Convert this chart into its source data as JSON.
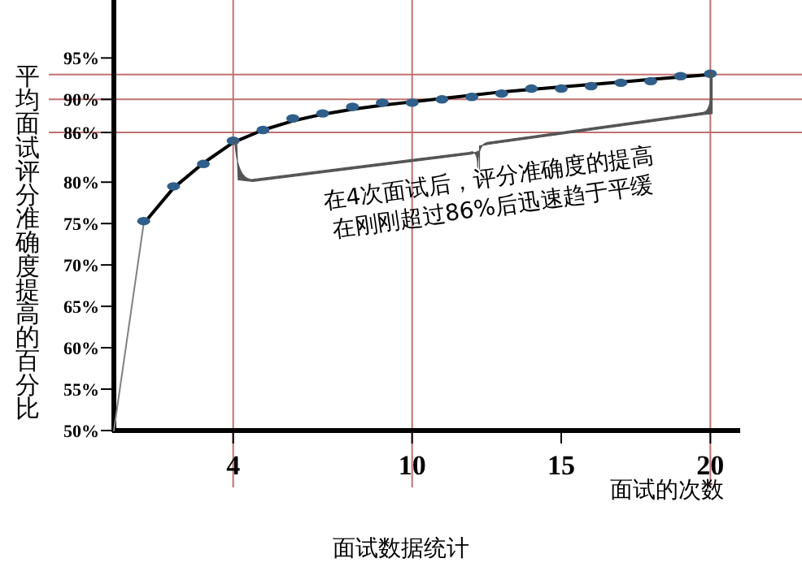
{
  "chart_data": {
    "type": "scatter",
    "title": "面试数据统计",
    "xlabel": "面试的次数",
    "ylabel": "平均面试评分准确度提高的百分比",
    "xlim": [
      0,
      21
    ],
    "xticks": [
      4,
      10,
      15,
      20
    ],
    "ylim": [
      50,
      102
    ],
    "yticks": [
      {
        "value": 50,
        "label": "50%"
      },
      {
        "value": 55,
        "label": "55%"
      },
      {
        "value": 60,
        "label": "60%"
      },
      {
        "value": 65,
        "label": "65%"
      },
      {
        "value": 70,
        "label": "70%"
      },
      {
        "value": 75,
        "label": "75%"
      },
      {
        "value": 80,
        "label": "80%"
      },
      {
        "value": 86,
        "label": "86%"
      },
      {
        "value": 90,
        "label": "90%"
      },
      {
        "value": 95,
        "label": "95%"
      }
    ],
    "marker": "circle",
    "grid": false,
    "series": [
      {
        "type": "line",
        "marker": "none",
        "color": "#808080",
        "x": [
          0,
          1
        ],
        "values": [
          50,
          75
        ]
      },
      {
        "type": "line",
        "marker": "none",
        "color": "#000000",
        "x": [
          1,
          2,
          3,
          4,
          5,
          6,
          7,
          8,
          9,
          10,
          11,
          12,
          13,
          14,
          15,
          16,
          17,
          18,
          19,
          20
        ],
        "values": [
          75,
          79.3,
          82.3,
          84.8,
          86.3,
          87.4,
          88.2,
          88.8,
          89.3,
          89.7,
          90.1,
          90.5,
          90.9,
          91.2,
          91.5,
          91.8,
          92.1,
          92.4,
          92.7,
          93
        ]
      },
      {
        "color": "#2f5f8a",
        "x": [
          1,
          2,
          3,
          4,
          5,
          6,
          7,
          8,
          9,
          10,
          11,
          12,
          13,
          14,
          15,
          16,
          17,
          18,
          19,
          20
        ],
        "values": [
          75.3,
          79.5,
          82.2,
          85,
          86.3,
          87.7,
          88.3,
          89.1,
          89.6,
          89.6,
          90,
          90.3,
          90.7,
          91.3,
          91.3,
          91.6,
          92,
          92.2,
          92.8,
          93.1
        ]
      }
    ],
    "ref_lines": [
      {
        "axis": "y",
        "value": 86,
        "color": "#c07070"
      },
      {
        "axis": "y",
        "value": 90,
        "color": "#c07070"
      },
      {
        "axis": "y",
        "value": 93,
        "color": "#c07070"
      },
      {
        "axis": "x",
        "value": 4,
        "color": "#c07070"
      },
      {
        "axis": "x",
        "value": 10,
        "color": "#c07070"
      },
      {
        "axis": "x",
        "value": 20,
        "color": "#c07070"
      }
    ],
    "annotations": [
      "在4次面试后，评分准确度的提高\n在刚刚超过86%后迅速趋于平缓"
    ]
  }
}
